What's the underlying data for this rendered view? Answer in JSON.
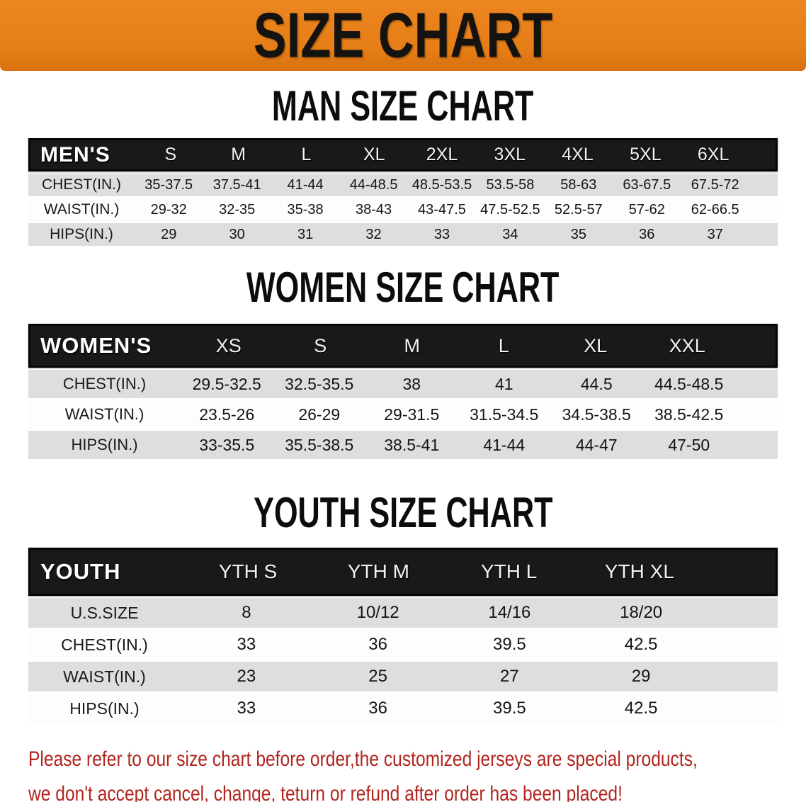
{
  "banner": {
    "title": "SIZE CHART",
    "bg_color": "#E67E17",
    "text_color": "#151310"
  },
  "sections": [
    {
      "key": "men",
      "heading": "MAN SIZE CHART",
      "header_label": "MEN'S",
      "columns": [
        "S",
        "M",
        "L",
        "XL",
        "2XL",
        "3XL",
        "4XL",
        "5XL",
        "6XL"
      ],
      "rows": [
        {
          "label": "CHEST(IN.)",
          "values": [
            "35-37.5",
            "37.5-41",
            "41-44",
            "44-48.5",
            "48.5-53.5",
            "53.5-58",
            "58-63",
            "63-67.5",
            "67.5-72"
          ]
        },
        {
          "label": "WAIST(IN.)",
          "values": [
            "29-32",
            "32-35",
            "35-38",
            "38-43",
            "43-47.5",
            "47.5-52.5",
            "52.5-57",
            "57-62",
            "62-66.5"
          ]
        },
        {
          "label": "HIPS(IN.)",
          "values": [
            "29",
            "30",
            "31",
            "32",
            "33",
            "34",
            "35",
            "36",
            "37"
          ]
        }
      ]
    },
    {
      "key": "women",
      "heading": "WOMEN SIZE CHART",
      "header_label": "WOMEN'S",
      "columns": [
        "XS",
        "S",
        "M",
        "L",
        "XL",
        "XXL"
      ],
      "rows": [
        {
          "label": "CHEST(IN.)",
          "values": [
            "29.5-32.5",
            "32.5-35.5",
            "38",
            "41",
            "44.5",
            "44.5-48.5"
          ]
        },
        {
          "label": "WAIST(IN.)",
          "values": [
            "23.5-26",
            "26-29",
            "29-31.5",
            "31.5-34.5",
            "34.5-38.5",
            "38.5-42.5"
          ]
        },
        {
          "label": "HIPS(IN.)",
          "values": [
            "33-35.5",
            "35.5-38.5",
            "38.5-41",
            "41-44",
            "44-47",
            "47-50"
          ]
        }
      ]
    },
    {
      "key": "youth",
      "heading": "YOUTH SIZE CHART",
      "header_label": "YOUTH",
      "columns": [
        "YTH S",
        "YTH M",
        "YTH L",
        "YTH XL"
      ],
      "rows": [
        {
          "label": "U.S.SIZE",
          "values": [
            "8",
            "10/12",
            "14/16",
            "18/20"
          ]
        },
        {
          "label": "CHEST(IN.)",
          "values": [
            "33",
            "36",
            "39.5",
            "42.5"
          ]
        },
        {
          "label": "WAIST(IN.)",
          "values": [
            "23",
            "25",
            "27",
            "29"
          ]
        },
        {
          "label": "HIPS(IN.)",
          "values": [
            "33",
            "36",
            "39.5",
            "42.5"
          ]
        }
      ]
    }
  ],
  "footer": {
    "line1": "Please refer to our size chart before order,the customized jerseys are special products,",
    "line2": "we don't accept cancel, change, teturn or refund after order has been placed!",
    "text_color": "#B2251F"
  }
}
